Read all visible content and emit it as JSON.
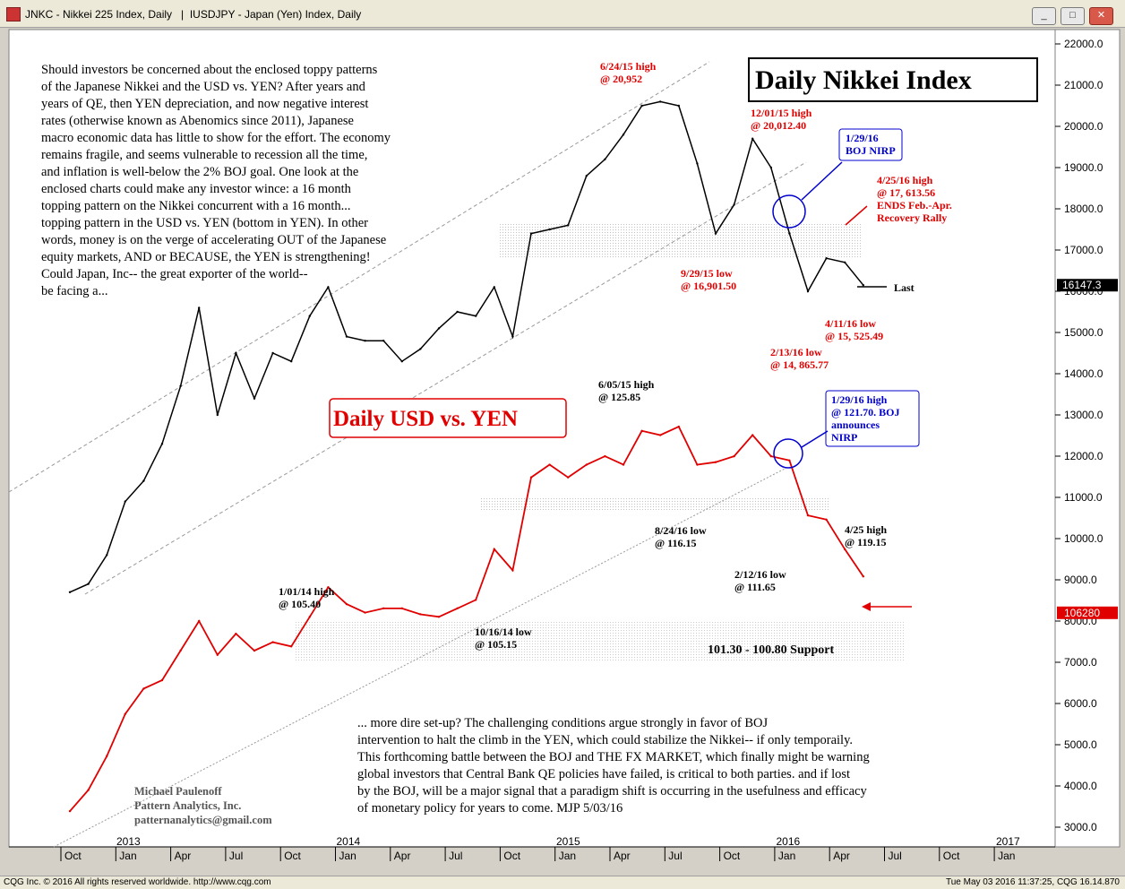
{
  "window": {
    "title": "JNKC - Nikkei 225 Index, Daily   |  IUSDJPY - Japan (Yen) Index, Daily",
    "buttons": [
      "_",
      "□",
      "✕"
    ]
  },
  "footer": {
    "left": "CQG Inc. © 2016 All rights reserved worldwide. http://www.cqg.com",
    "right": "Tue May 03 2016 11:37:25, CQG 16.14.870"
  },
  "chart_data": {
    "type": "line",
    "title": "Daily Nikkei Index",
    "subtitle": "Daily USD vs. YEN",
    "y_axis": {
      "ticks": [
        "22000.0",
        "21000.0",
        "20000.0",
        "19000.0",
        "18000.0",
        "17000.0",
        "16000.0",
        "15000.0",
        "14000.0",
        "13000.0",
        "12000.0",
        "11000.0",
        "10000.0",
        "9000.0",
        "8000.0",
        "7000.0",
        "6000.0",
        "5000.0",
        "4000.0",
        "3000.0"
      ],
      "ylim": [
        2500,
        22500
      ]
    },
    "x_axis": {
      "months": [
        "Oct",
        "Jan",
        "Apr",
        "Jul",
        "Oct",
        "Jan",
        "Apr",
        "Jul",
        "Oct",
        "Jan",
        "Apr",
        "Jul",
        "Oct",
        "Jan",
        "Apr",
        "Jul",
        "Oct",
        "Jan"
      ],
      "years": [
        "2013",
        "2014",
        "2015",
        "2016",
        "2017"
      ]
    },
    "series": [
      {
        "name": "Nikkei 225",
        "color": "#000000",
        "last_value": "16147.3",
        "points": [
          [
            "2012-10",
            8700
          ],
          [
            "2012-11",
            8900
          ],
          [
            "2012-12",
            9600
          ],
          [
            "2013-01",
            10900
          ],
          [
            "2013-02",
            11400
          ],
          [
            "2013-03",
            12300
          ],
          [
            "2013-04",
            13700
          ],
          [
            "2013-05",
            15600
          ],
          [
            "2013-06",
            13000
          ],
          [
            "2013-07",
            14500
          ],
          [
            "2013-08",
            13400
          ],
          [
            "2013-09",
            14500
          ],
          [
            "2013-10",
            14300
          ],
          [
            "2013-11",
            15400
          ],
          [
            "2013-12",
            16100
          ],
          [
            "2014-01",
            14900
          ],
          [
            "2014-02",
            14800
          ],
          [
            "2014-03",
            14800
          ],
          [
            "2014-04",
            14300
          ],
          [
            "2014-05",
            14600
          ],
          [
            "2014-06",
            15100
          ],
          [
            "2014-07",
            15500
          ],
          [
            "2014-08",
            15400
          ],
          [
            "2014-09",
            16100
          ],
          [
            "2014-10",
            14900
          ],
          [
            "2014-11",
            17400
          ],
          [
            "2014-12",
            17500
          ],
          [
            "2015-01",
            17600
          ],
          [
            "2015-02",
            18800
          ],
          [
            "2015-03",
            19200
          ],
          [
            "2015-04",
            19800
          ],
          [
            "2015-05",
            20500
          ],
          [
            "2015-06",
            20600
          ],
          [
            "2015-07",
            20500
          ],
          [
            "2015-08",
            19100
          ],
          [
            "2015-09",
            17400
          ],
          [
            "2015-10",
            18100
          ],
          [
            "2015-11",
            19700
          ],
          [
            "2015-12",
            19000
          ],
          [
            "2016-01",
            17400
          ],
          [
            "2016-02",
            16000
          ],
          [
            "2016-03",
            16800
          ],
          [
            "2016-04",
            16700
          ],
          [
            "2016-05",
            16147
          ]
        ]
      },
      {
        "name": "USD vs. YEN",
        "color": "#e00000",
        "last_value": "106280",
        "points": [
          [
            "2012-10",
            78.5
          ],
          [
            "2012-11",
            81.0
          ],
          [
            "2012-12",
            85.0
          ],
          [
            "2013-01",
            90.0
          ],
          [
            "2013-02",
            93.0
          ],
          [
            "2013-03",
            94.0
          ],
          [
            "2013-04",
            97.5
          ],
          [
            "2013-05",
            101.0
          ],
          [
            "2013-06",
            97.0
          ],
          [
            "2013-07",
            99.5
          ],
          [
            "2013-08",
            97.5
          ],
          [
            "2013-09",
            98.5
          ],
          [
            "2013-10",
            98.0
          ],
          [
            "2013-11",
            101.5
          ],
          [
            "2013-12",
            105.0
          ],
          [
            "2014-01",
            103.0
          ],
          [
            "2014-02",
            102.0
          ],
          [
            "2014-03",
            102.5
          ],
          [
            "2014-04",
            102.5
          ],
          [
            "2014-05",
            101.8
          ],
          [
            "2014-06",
            101.5
          ],
          [
            "2014-07",
            102.5
          ],
          [
            "2014-08",
            103.5
          ],
          [
            "2014-09",
            109.5
          ],
          [
            "2014-10",
            107.0
          ],
          [
            "2014-11",
            118.0
          ],
          [
            "2014-12",
            119.5
          ],
          [
            "2015-01",
            118.0
          ],
          [
            "2015-02",
            119.5
          ],
          [
            "2015-03",
            120.5
          ],
          [
            "2015-04",
            119.5
          ],
          [
            "2015-05",
            123.5
          ],
          [
            "2015-06",
            123.0
          ],
          [
            "2015-07",
            124.0
          ],
          [
            "2015-08",
            119.5
          ],
          [
            "2015-09",
            119.8
          ],
          [
            "2015-10",
            120.5
          ],
          [
            "2015-11",
            123.0
          ],
          [
            "2015-12",
            120.5
          ],
          [
            "2016-01",
            120.0
          ],
          [
            "2016-02",
            113.5
          ],
          [
            "2016-03",
            113.0
          ],
          [
            "2016-04",
            109.5
          ],
          [
            "2016-05",
            106.28
          ]
        ]
      }
    ],
    "annotations": {
      "nikkei_high_0615": "6/24/15 high\n@ 20,952",
      "nikkei_high_1215": "12/01/15 high\n@ 20,012.40",
      "nikkei_low_0915": "9/29/15 low\n@ 16,901.50",
      "nikkei_low_0216": "2/13/16 low\n@ 14, 865.77",
      "nikkei_low_0416": "4/11/16 low\n@ 15, 525.49",
      "nikkei_high_0416": "4/25/16 high\n@ 17, 613.56\nENDS Feb.-Apr.\nRecovery Rally",
      "boj_nirp_box": "1/29/16\nBOJ NIRP",
      "last_label": "Last",
      "yen_high_0615": "6/05/15 high\n@ 125.85",
      "yen_high_0116": "1/29/16 high\n@ 121.70. BOJ\nannounces\nNIRP",
      "yen_low_0816": "8/24/16 low\n@ 116.15",
      "yen_low_0216": "2/12/16 low\n@ 111.65",
      "yen_high_0416": "4/25 high\n@ 119.15",
      "yen_high_0114": "1/01/14 high\n@ 105.40",
      "yen_low_1014": "10/16/14 low\n@ 105.15",
      "support_label": "101.30 - 100.80 Support"
    },
    "commentary_top": "Should investors be concerned about the enclosed toppy patterns\nof the Japanese Nikkei and the USD vs. YEN? After years and\nyears of QE, then YEN depreciation, and now negative interest\nrates (otherwise known as Abenomics since 2011), Japanese\nmacro economic data has little to show for the effort. The economy\nremains fragile, and seems vulnerable to recession all the time,\nand inflation is well-below the 2% BOJ goal. One look at the\nenclosed charts could make any investor wince: a 16 month\ntopping pattern on the Nikkei concurrent with a 16 month...\ntopping pattern in the USD vs. YEN (bottom in YEN). In other\nwords, money is on the verge of accelerating OUT of the Japanese\nequity markets, AND or BECAUSE, the YEN is strengthening!\nCould Japan, Inc-- the great exporter of the world--\nbe facing a...",
    "commentary_bottom": "...  more dire set-up? The challenging conditions argue strongly in favor of BOJ\nintervention to halt the climb in the YEN, which could stabilize the Nikkei-- if only temporaily.\nThis forthcoming battle between the BOJ and THE FX MARKET, which finally might be warning\nglobal investors that Central Bank QE policies have failed, is critical to both parties. and if lost\nby the BOJ, will be a major signal that a paradigm shift is occurring in the usefulness and efficacy\nof monetary policy for years to come. MJP 5/03/16",
    "author": "Michael Paulenoff\nPattern Analytics, Inc.\npatternanalytics@gmail.com"
  }
}
